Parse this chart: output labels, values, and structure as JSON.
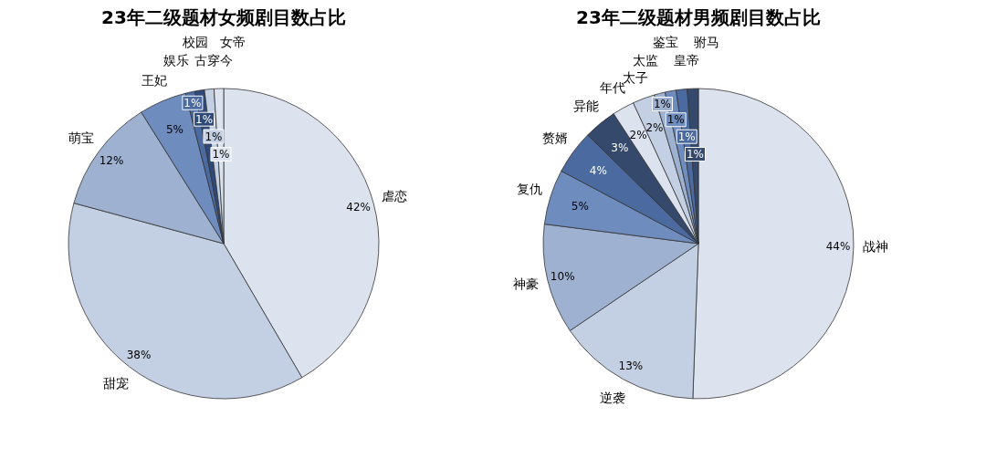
{
  "chart_data": [
    {
      "type": "pie",
      "title": "23年二级题材女频剧目数占比",
      "categories": [
        "虐恋",
        "甜宠",
        "萌宝",
        "王妃",
        "娱乐",
        "校园",
        "古穿今",
        "女帝"
      ],
      "values": [
        42,
        38,
        12,
        5,
        1,
        1,
        1,
        1
      ],
      "value_labels": [
        "42%",
        "38%",
        "12%",
        "5%",
        "1%",
        "1%",
        "1%",
        "1%"
      ],
      "colors": [
        "#dce3ef",
        "#c3cfe2",
        "#9eb1d0",
        "#6e8cbd",
        "#4a6aa0",
        "#2f4a78",
        "#c3cfe2",
        "#dce3ef"
      ]
    },
    {
      "type": "pie",
      "title": "23年二级题材男频剧目数占比",
      "categories": [
        "战神",
        "逆袭",
        "神豪",
        "复仇",
        "赘婿",
        "异能",
        "年代",
        "太子",
        "太监",
        "鉴宝",
        "皇帝",
        "驸马"
      ],
      "values": [
        44,
        13,
        10,
        5,
        4,
        3,
        2,
        2,
        1,
        1,
        1,
        1
      ],
      "value_labels": [
        "44%",
        "13%",
        "10%",
        "5%",
        "4%",
        "3%",
        "2%",
        "2%",
        "1%",
        "1%",
        "1%",
        "1%"
      ],
      "colors": [
        "#dce3ef",
        "#c3cfe2",
        "#9eb1d0",
        "#6e8cbd",
        "#4a6aa0",
        "#34496b",
        "#dce3ef",
        "#c3cfe2",
        "#9eb1d0",
        "#6e8cbd",
        "#4a6aa0",
        "#34496b"
      ]
    }
  ]
}
